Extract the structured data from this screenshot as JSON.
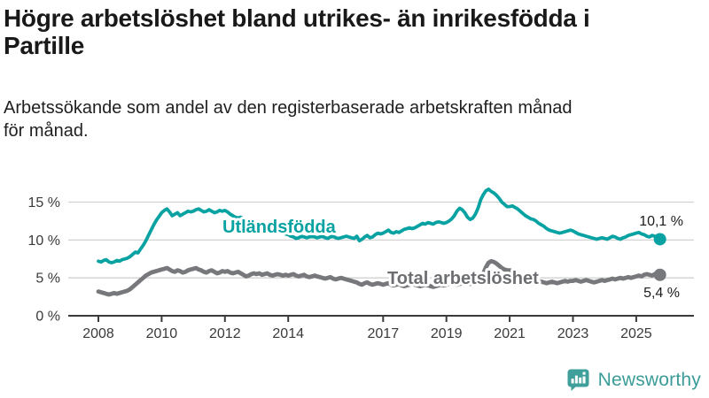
{
  "header": {
    "title_line1": "Högre arbetslöshet bland utrikes- än inrikesfödda i",
    "title_line2": "Partille",
    "subtitle_line1": "Arbetssökande som andel av den registerbaserade arbetskraften månad",
    "subtitle_line2": "för månad."
  },
  "chart_data": {
    "type": "line",
    "title": "Högre arbetslöshet bland utrikes- än inrikesfödda i Partille",
    "subtitle": "Arbetssökande som andel av den registerbaserade arbetskraften månad för månad.",
    "x_unit": "month",
    "x_start": "2008-01",
    "x_end": "2025-10",
    "ylim": [
      0,
      17.5
    ],
    "grid": "horizontal-only",
    "legend_position": "inline-labels",
    "axes": {
      "y_ticks": [
        {
          "value": 15,
          "label": "15 %"
        },
        {
          "value": 10,
          "label": "10 %"
        },
        {
          "value": 5,
          "label": "5 %"
        },
        {
          "value": 0,
          "label": "0 %"
        }
      ],
      "x_ticks": [
        {
          "year": 2008,
          "label": "2008"
        },
        {
          "year": 2010,
          "label": "2010"
        },
        {
          "year": 2012,
          "label": "2012"
        },
        {
          "year": 2014,
          "label": "2014"
        },
        {
          "year": 2017,
          "label": "2017"
        },
        {
          "year": 2019,
          "label": "2019"
        },
        {
          "year": 2021,
          "label": "2021"
        },
        {
          "year": 2023,
          "label": "2023"
        },
        {
          "year": 2025,
          "label": "2025"
        }
      ]
    },
    "series": [
      {
        "name": "Utländsfödda",
        "color": "#09a2a2",
        "end_label": "10,1 %",
        "end_value": 10.1,
        "values": [
          7.2,
          7.1,
          7.3,
          7.4,
          7.1,
          7.0,
          7.1,
          7.3,
          7.2,
          7.4,
          7.5,
          7.6,
          7.8,
          8.1,
          8.4,
          8.3,
          8.8,
          9.3,
          9.9,
          10.6,
          11.3,
          12.0,
          12.6,
          13.1,
          13.6,
          13.9,
          14.1,
          13.7,
          13.2,
          13.4,
          13.6,
          13.2,
          13.4,
          13.6,
          13.8,
          13.7,
          13.8,
          14.0,
          14.1,
          13.9,
          13.7,
          13.8,
          14.0,
          13.8,
          13.6,
          13.7,
          13.9,
          13.8,
          13.9,
          13.7,
          13.4,
          13.2,
          13.0,
          12.9,
          13.0,
          12.8,
          12.6,
          12.5,
          12.4,
          12.3,
          12.2,
          12.1,
          12.3,
          12.1,
          11.9,
          11.7,
          11.5,
          11.4,
          11.2,
          11.0,
          10.9,
          10.8,
          10.7,
          10.5,
          10.4,
          10.2,
          10.3,
          10.5,
          10.4,
          10.3,
          10.4,
          10.5,
          10.4,
          10.3,
          10.4,
          10.5,
          10.3,
          10.2,
          10.4,
          10.5,
          10.3,
          10.2,
          10.3,
          10.4,
          10.5,
          10.4,
          10.3,
          10.2,
          10.5,
          9.9,
          10.1,
          10.4,
          10.6,
          10.3,
          10.4,
          10.7,
          10.9,
          10.8,
          10.9,
          11.1,
          11.3,
          11.0,
          10.9,
          11.1,
          11.0,
          11.2,
          11.4,
          11.5,
          11.6,
          11.5,
          11.6,
          11.8,
          12.0,
          12.2,
          12.1,
          12.3,
          12.2,
          12.1,
          12.3,
          12.4,
          12.3,
          12.2,
          12.3,
          12.5,
          12.8,
          13.2,
          13.8,
          14.2,
          14.0,
          13.6,
          13.0,
          12.7,
          12.9,
          13.4,
          14.2,
          15.3,
          16.0,
          16.5,
          16.7,
          16.4,
          16.2,
          15.9,
          15.5,
          15.0,
          14.7,
          14.4,
          14.4,
          14.5,
          14.3,
          14.1,
          13.8,
          13.5,
          13.2,
          13.0,
          12.8,
          12.7,
          12.5,
          12.2,
          12.0,
          11.8,
          11.5,
          11.3,
          11.2,
          11.1,
          11.0,
          10.9,
          11.0,
          11.1,
          11.2,
          11.3,
          11.2,
          11.0,
          10.8,
          10.7,
          10.6,
          10.5,
          10.4,
          10.3,
          10.2,
          10.1,
          10.2,
          10.3,
          10.2,
          10.1,
          10.3,
          10.5,
          10.4,
          10.2,
          10.1,
          10.3,
          10.4,
          10.6,
          10.7,
          10.8,
          10.9,
          11.0,
          10.8,
          10.7,
          10.5,
          10.4,
          10.6,
          10.5,
          10.3,
          10.1
        ]
      },
      {
        "name": "Total arbetslöshet",
        "color": "#77787c",
        "end_label": "5,4 %",
        "end_value": 5.4,
        "values": [
          3.2,
          3.1,
          3.0,
          2.9,
          2.8,
          2.9,
          3.0,
          2.9,
          3.0,
          3.1,
          3.2,
          3.3,
          3.5,
          3.8,
          4.1,
          4.4,
          4.7,
          5.0,
          5.3,
          5.5,
          5.7,
          5.8,
          5.9,
          6.0,
          6.1,
          6.2,
          6.3,
          6.1,
          5.9,
          5.8,
          6.0,
          5.9,
          5.7,
          5.8,
          6.0,
          6.1,
          6.2,
          6.3,
          6.1,
          6.0,
          5.8,
          5.7,
          5.9,
          6.0,
          5.8,
          5.6,
          5.7,
          5.9,
          5.8,
          5.9,
          5.7,
          5.6,
          5.7,
          5.8,
          5.6,
          5.4,
          5.2,
          5.3,
          5.5,
          5.6,
          5.5,
          5.6,
          5.4,
          5.5,
          5.6,
          5.4,
          5.3,
          5.4,
          5.5,
          5.4,
          5.3,
          5.4,
          5.3,
          5.4,
          5.5,
          5.3,
          5.2,
          5.3,
          5.4,
          5.2,
          5.1,
          5.2,
          5.3,
          5.2,
          5.1,
          5.0,
          4.9,
          5.0,
          5.1,
          4.9,
          4.8,
          4.9,
          5.0,
          4.9,
          4.8,
          4.7,
          4.6,
          4.5,
          4.4,
          4.2,
          4.1,
          4.3,
          4.4,
          4.2,
          4.1,
          4.2,
          4.3,
          4.2,
          4.1,
          4.2,
          4.3,
          4.1,
          4.0,
          4.1,
          4.2,
          4.0,
          3.9,
          4.0,
          4.1,
          4.2,
          4.1,
          4.0,
          3.9,
          4.0,
          4.1,
          4.0,
          3.9,
          3.8,
          3.9,
          4.0,
          4.1,
          4.0,
          4.1,
          4.2,
          4.3,
          4.2,
          4.1,
          4.2,
          4.3,
          4.4,
          4.3,
          4.2,
          4.3,
          4.5,
          4.7,
          5.0,
          5.6,
          6.4,
          7.0,
          7.2,
          7.1,
          6.9,
          6.6,
          6.3,
          6.1,
          6.0,
          6.0,
          5.9,
          5.7,
          5.5,
          5.3,
          5.1,
          5.0,
          4.9,
          4.8,
          4.7,
          4.6,
          4.5,
          4.5,
          4.4,
          4.3,
          4.4,
          4.5,
          4.4,
          4.3,
          4.4,
          4.5,
          4.6,
          4.5,
          4.6,
          4.6,
          4.7,
          4.6,
          4.5,
          4.6,
          4.7,
          4.6,
          4.5,
          4.4,
          4.5,
          4.6,
          4.7,
          4.6,
          4.7,
          4.8,
          4.9,
          4.8,
          4.9,
          5.0,
          4.9,
          5.0,
          5.1,
          5.0,
          5.1,
          5.2,
          5.3,
          5.2,
          5.4,
          5.5,
          5.4,
          5.3,
          5.5,
          5.6,
          5.4
        ]
      }
    ]
  },
  "colors": {
    "accent_teal": "#09a2a2",
    "line_gray": "#77787c",
    "grid": "#d2d2d2",
    "axis": "#3a3a3a"
  },
  "logo": {
    "text": "Newsworthy",
    "color": "#3a9c98"
  }
}
